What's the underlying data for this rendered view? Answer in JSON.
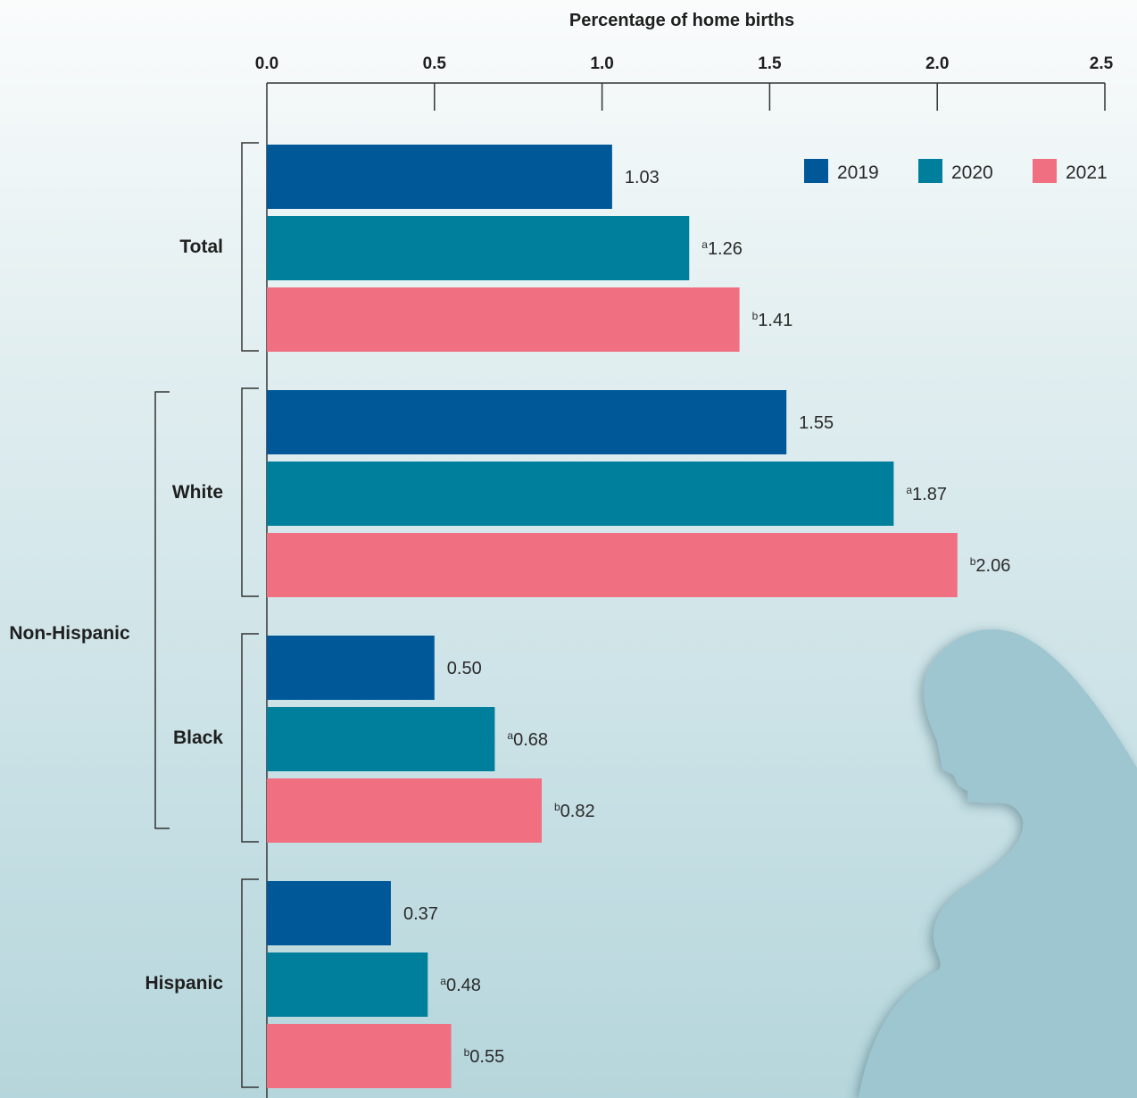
{
  "chart_data": {
    "type": "bar",
    "orientation": "horizontal",
    "title": "",
    "xlabel": "Percentage of home births",
    "ylabel": "",
    "xlim": [
      0,
      2.5
    ],
    "xticks": [
      "0.0",
      "0.5",
      "1.0",
      "1.5",
      "2.0",
      "2.5"
    ],
    "grid": false,
    "legend_position": "top-right",
    "group_label": "Non-Hispanic",
    "categories": [
      "Total",
      "White",
      "Black",
      "Hispanic"
    ],
    "series": [
      {
        "name": "2019",
        "color": "#005899",
        "values": [
          1.03,
          1.55,
          0.5,
          0.37
        ],
        "labels": [
          "1.03",
          "1.55",
          "0.50",
          "0.37"
        ],
        "markers": [
          "",
          "",
          "",
          ""
        ]
      },
      {
        "name": "2020",
        "color": "#007f9c",
        "values": [
          1.26,
          1.87,
          0.68,
          0.48
        ],
        "labels": [
          "1.26",
          "1.87",
          "0.68",
          "0.48"
        ],
        "markers": [
          "a",
          "a",
          "a",
          "a"
        ]
      },
      {
        "name": "2021",
        "color": "#f06f80",
        "values": [
          1.41,
          2.06,
          0.82,
          0.55
        ],
        "labels": [
          "1.41",
          "2.06",
          "0.82",
          "0.55"
        ],
        "markers": [
          "b",
          "b",
          "b",
          "b"
        ]
      }
    ]
  }
}
